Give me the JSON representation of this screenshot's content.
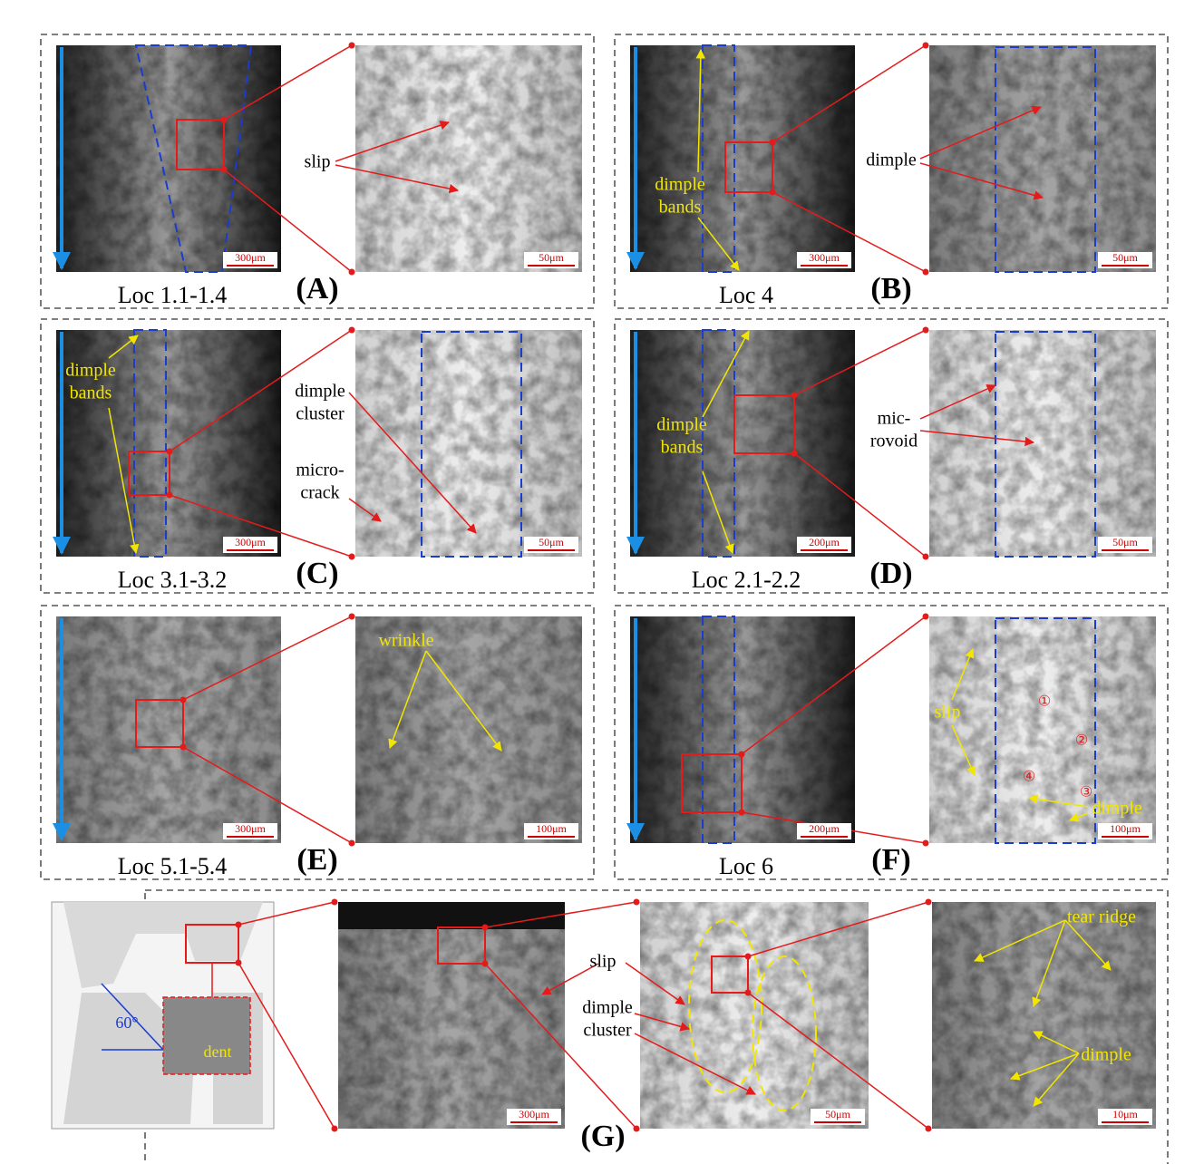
{
  "panels": [
    {
      "id": "(A)",
      "location": "Loc 1.1-1.4",
      "scale_bars": [
        "300μm",
        "50μm"
      ],
      "annotations": [
        {
          "lines": [
            "slip"
          ]
        }
      ]
    },
    {
      "id": "(B)",
      "location": "Loc 4",
      "scale_bars": [
        "300μm",
        "50μm"
      ],
      "annotations": [
        {
          "lines": [
            "dimple"
          ]
        },
        {
          "lines": [
            "dimple",
            "bands"
          ]
        }
      ]
    },
    {
      "id": "(C)",
      "location": "Loc 3.1-3.2",
      "scale_bars": [
        "300μm",
        "50μm"
      ],
      "annotations": [
        {
          "lines": [
            "dimple",
            "bands"
          ]
        },
        {
          "lines": [
            "dimple",
            "cluster"
          ]
        },
        {
          "lines": [
            "micro-",
            "crack"
          ]
        }
      ]
    },
    {
      "id": "(D)",
      "location": "Loc 2.1-2.2",
      "scale_bars": [
        "200μm",
        "50μm"
      ],
      "annotations": [
        {
          "lines": [
            "dimple",
            "bands"
          ]
        },
        {
          "lines": [
            "mic-",
            "rovoid"
          ]
        }
      ]
    },
    {
      "id": "(E)",
      "location": "Loc 5.1-5.4",
      "scale_bars": [
        "300μm",
        "100μm"
      ],
      "annotations": [
        {
          "lines": [
            "wrinkle"
          ]
        }
      ]
    },
    {
      "id": "(F)",
      "location": "Loc 6",
      "scale_bars": [
        "200μm",
        "100μm"
      ],
      "annotations": [
        {
          "lines": [
            "slip"
          ]
        },
        {
          "lines": [
            "dimple"
          ]
        },
        {
          "lines": [
            "①"
          ]
        },
        {
          "lines": [
            "②"
          ]
        },
        {
          "lines": [
            "③"
          ]
        },
        {
          "lines": [
            "④"
          ]
        }
      ]
    },
    {
      "id": "(G)",
      "scale_bars": [
        "300μm",
        "50μm",
        "10μm"
      ],
      "annotations": [
        {
          "lines": [
            "60°"
          ]
        },
        {
          "lines": [
            "dent"
          ]
        },
        {
          "lines": [
            "slip"
          ]
        },
        {
          "lines": [
            "dimple",
            "cluster"
          ]
        },
        {
          "lines": [
            "tear ridge"
          ]
        },
        {
          "lines": [
            "dimple"
          ]
        }
      ]
    }
  ]
}
